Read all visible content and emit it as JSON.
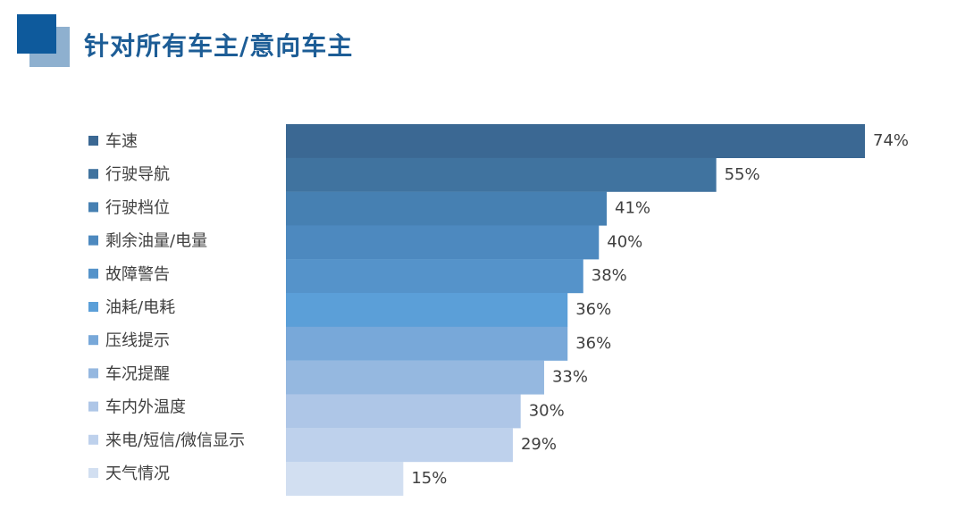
{
  "title": "针对所有车主/意向车主",
  "chart_data": {
    "type": "bar",
    "orientation": "horizontal",
    "categories": [
      "车速",
      "行驶导航",
      "行驶档位",
      "剩余油量/电量",
      "故障警告",
      "油耗/电耗",
      "压线提示",
      "车况提醒",
      "车内外温度",
      "来电/短信/微信显示",
      "天气情况"
    ],
    "values": [
      74,
      55,
      41,
      40,
      38,
      36,
      36,
      33,
      30,
      29,
      15
    ],
    "value_labels": [
      "74%",
      "55%",
      "41%",
      "40%",
      "38%",
      "36%",
      "36%",
      "33%",
      "30%",
      "29%",
      "15%"
    ],
    "colors": [
      "#3b6893",
      "#40739f",
      "#4680b2",
      "#4d89bf",
      "#5593ca",
      "#5b9fd8",
      "#78a8d9",
      "#95b8e0",
      "#aec6e7",
      "#bed1ec",
      "#d2dff1"
    ],
    "xlim": [
      0,
      74
    ],
    "legend_position": "left"
  }
}
